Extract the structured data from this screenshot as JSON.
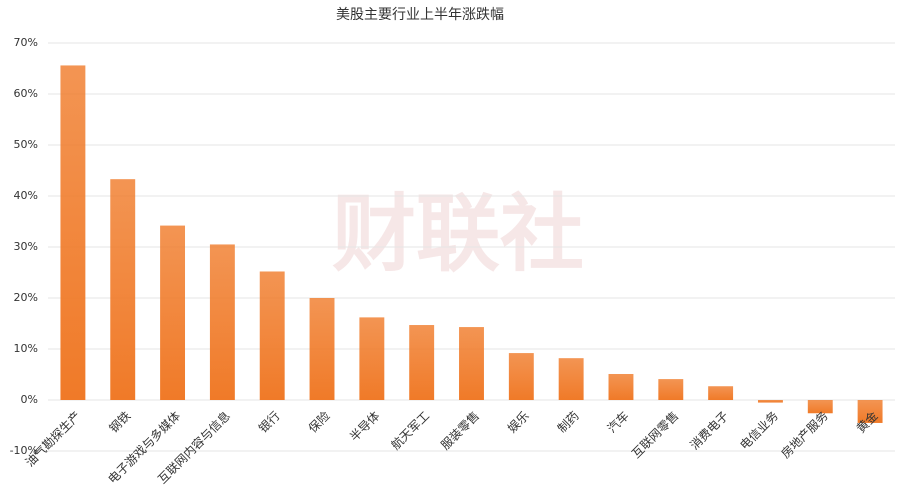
{
  "chart_data": {
    "type": "bar",
    "title": "美股主要行业上半年涨跌幅",
    "watermark": "财联社",
    "categories": [
      "油气勘探生产",
      "钢铁",
      "电子游戏与多媒体",
      "互联网内容与信息",
      "银行",
      "保险",
      "半导体",
      "航天军工",
      "服装零售",
      "娱乐",
      "制药",
      "汽车",
      "互联网零售",
      "消费电子",
      "电信业务",
      "房地产服务",
      "黄金"
    ],
    "values": [
      65.6,
      43.3,
      34.2,
      30.5,
      25.2,
      20.0,
      16.2,
      14.7,
      14.3,
      9.2,
      8.2,
      5.1,
      4.1,
      2.7,
      -0.5,
      -2.6,
      -4.5
    ],
    "color": "#f07a28",
    "ylim": [
      -10,
      70
    ],
    "yticks": [
      {
        "value": -10,
        "label": "-10%"
      },
      {
        "value": 0,
        "label": "0%"
      },
      {
        "value": 10,
        "label": "10%"
      },
      {
        "value": 20,
        "label": "20%"
      },
      {
        "value": 30,
        "label": "30%"
      },
      {
        "value": 40,
        "label": "40%"
      },
      {
        "value": 50,
        "label": "50%"
      },
      {
        "value": 60,
        "label": "60%"
      },
      {
        "value": 70,
        "label": "70%"
      }
    ],
    "grid": true
  }
}
